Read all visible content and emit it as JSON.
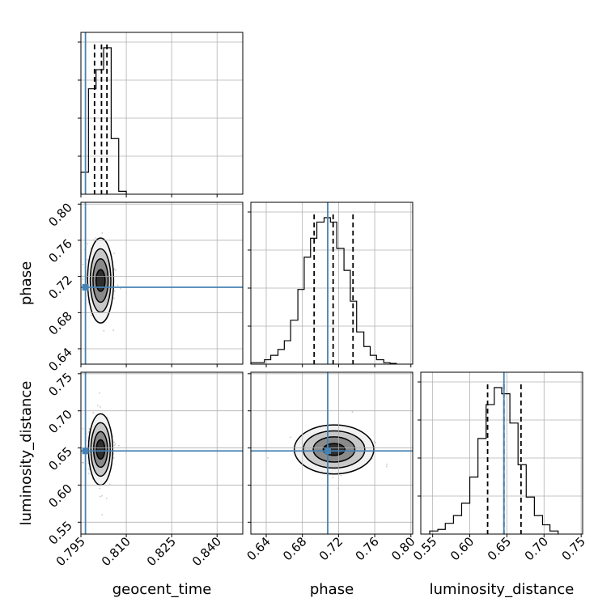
{
  "chart_data": {
    "type": "corner",
    "parameters": [
      "geocent_time",
      "phase",
      "luminosity_distance"
    ],
    "truth_color": "#4682b4",
    "truths": {
      "geocent_time": 0.7965,
      "phase": 0.708,
      "luminosity_distance": 0.646
    },
    "ranges": {
      "geocent_time": [
        0.795,
        0.8485
      ],
      "phase": [
        0.623,
        0.802
      ],
      "luminosity_distance": [
        0.534,
        0.752
      ]
    },
    "ticks": {
      "geocent_time": [
        0.795,
        0.81,
        0.825,
        0.84
      ],
      "phase": [
        0.64,
        0.68,
        0.72,
        0.76,
        0.8
      ],
      "luminosity_distance": [
        0.55,
        0.6,
        0.65,
        0.7,
        0.75
      ]
    },
    "tick_labels": {
      "geocent_time": [
        "0.795",
        "0.810",
        "0.825",
        "0.840"
      ],
      "phase": [
        "0.64",
        "0.68",
        "0.72",
        "0.76",
        "0.80"
      ],
      "luminosity_distance": [
        "0.55",
        "0.60",
        "0.65",
        "0.70",
        "0.75"
      ]
    },
    "quantiles": {
      "geocent_time": [
        0.7995,
        0.8018,
        0.8036
      ],
      "phase": [
        0.693,
        0.714,
        0.736
      ],
      "luminosity_distance": [
        0.624,
        0.646,
        0.669
      ]
    },
    "histograms": [
      {
        "parameter": "geocent_time",
        "bin_edges": [
          0.795,
          0.7975,
          0.8,
          0.8025,
          0.805,
          0.8075,
          0.81
        ],
        "counts": [
          0.15,
          0.72,
          0.85,
          1.0,
          0.38,
          0.02
        ]
      },
      {
        "parameter": "phase",
        "bin_edges": [
          0.623,
          0.631,
          0.638,
          0.645,
          0.653,
          0.66,
          0.667,
          0.675,
          0.682,
          0.689,
          0.696,
          0.704,
          0.711,
          0.718,
          0.726,
          0.733,
          0.74,
          0.748,
          0.755,
          0.762,
          0.77,
          0.777,
          0.784
        ],
        "counts": [
          0.01,
          0.01,
          0.03,
          0.06,
          0.1,
          0.16,
          0.3,
          0.51,
          0.73,
          0.86,
          0.97,
          1.0,
          0.97,
          0.79,
          0.64,
          0.43,
          0.22,
          0.12,
          0.06,
          0.03,
          0.01,
          0.005
        ]
      },
      {
        "parameter": "luminosity_distance",
        "bin_edges": [
          0.546,
          0.557,
          0.567,
          0.578,
          0.589,
          0.6,
          0.611,
          0.622,
          0.633,
          0.643,
          0.654,
          0.665,
          0.676,
          0.687,
          0.698,
          0.708,
          0.719
        ],
        "counts": [
          0.02,
          0.03,
          0.07,
          0.12,
          0.2,
          0.37,
          0.62,
          0.84,
          0.95,
          0.91,
          0.72,
          0.45,
          0.24,
          0.12,
          0.06,
          0.02
        ]
      }
    ],
    "pairs": [
      {
        "x": "geocent_time",
        "y": "phase",
        "center": [
          0.8015,
          0.7155
        ],
        "contour_half_widths": [
          [
            0.0015,
            0.012
          ],
          [
            0.0025,
            0.024
          ],
          [
            0.0034,
            0.035
          ],
          [
            0.0043,
            0.047
          ]
        ]
      },
      {
        "x": "geocent_time",
        "y": "luminosity_distance",
        "center": [
          0.8015,
          0.648
        ],
        "contour_half_widths": [
          [
            0.0014,
            0.013
          ],
          [
            0.0023,
            0.024
          ],
          [
            0.0032,
            0.036
          ],
          [
            0.004,
            0.048
          ]
        ]
      },
      {
        "x": "phase",
        "y": "luminosity_distance",
        "center": [
          0.715,
          0.648
        ],
        "contour_half_widths": [
          [
            0.012,
            0.008
          ],
          [
            0.023,
            0.017
          ],
          [
            0.034,
            0.025
          ],
          [
            0.044,
            0.033
          ]
        ]
      }
    ],
    "grid": true
  }
}
